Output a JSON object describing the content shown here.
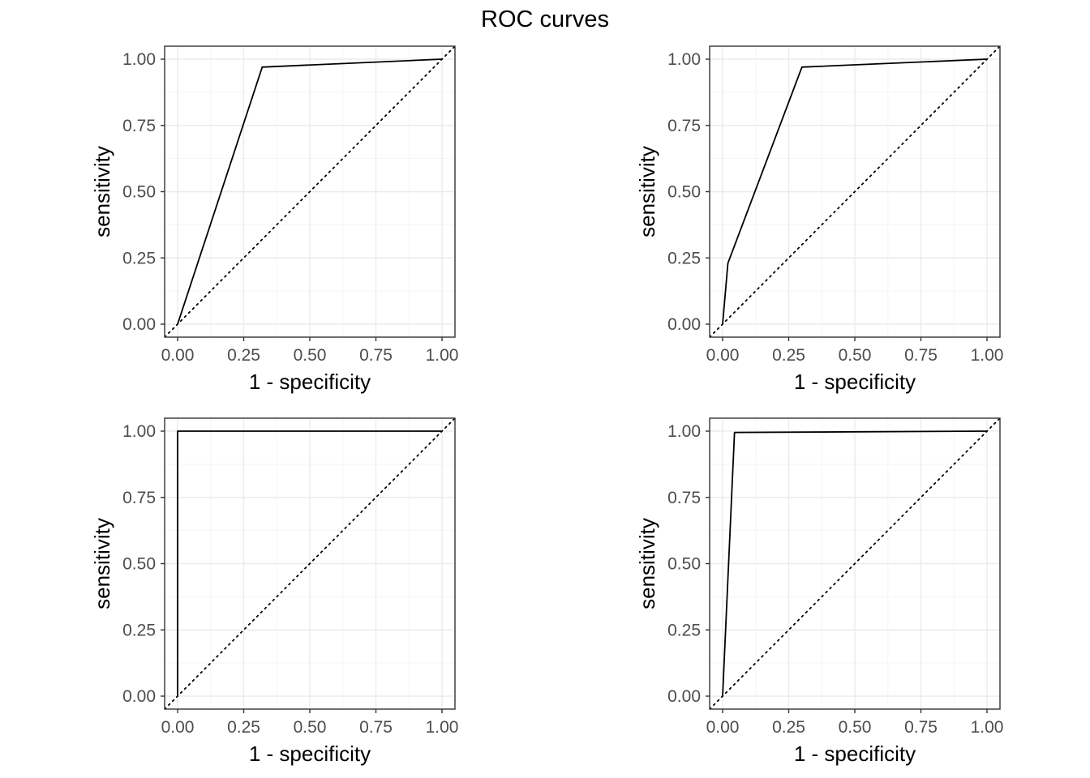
{
  "title": "ROC curves",
  "colors": {
    "grid_major": "#ebebeb",
    "grid_minor": "#f5f5f5",
    "panel_border": "#333333",
    "curve": "#000000",
    "diagonal": "#000000",
    "tick_text": "#4d4d4d"
  },
  "chart_data": [
    {
      "type": "line",
      "xlabel": "1 - specificity",
      "ylabel": "sensitivity",
      "xlim": [
        0,
        1
      ],
      "ylim": [
        0,
        1
      ],
      "xticks": [
        "0.00",
        "0.25",
        "0.50",
        "0.75",
        "1.00"
      ],
      "yticks": [
        "0.00",
        "0.25",
        "0.50",
        "0.75",
        "1.00"
      ],
      "grid": true,
      "reference_line": "diagonal dotted",
      "series": [
        {
          "x": [
            0.0,
            0.32,
            1.0
          ],
          "y": [
            0.0,
            0.97,
            1.0
          ]
        }
      ]
    },
    {
      "type": "line",
      "xlabel": "1 - specificity",
      "ylabel": "sensitivity",
      "xlim": [
        0,
        1
      ],
      "ylim": [
        0,
        1
      ],
      "xticks": [
        "0.00",
        "0.25",
        "0.50",
        "0.75",
        "1.00"
      ],
      "yticks": [
        "0.00",
        "0.25",
        "0.50",
        "0.75",
        "1.00"
      ],
      "grid": true,
      "reference_line": "diagonal dotted",
      "series": [
        {
          "x": [
            0.0,
            0.02,
            0.3,
            1.0
          ],
          "y": [
            0.0,
            0.23,
            0.97,
            1.0
          ]
        }
      ]
    },
    {
      "type": "line",
      "xlabel": "1 - specificity",
      "ylabel": "sensitivity",
      "xlim": [
        0,
        1
      ],
      "ylim": [
        0,
        1
      ],
      "xticks": [
        "0.00",
        "0.25",
        "0.50",
        "0.75",
        "1.00"
      ],
      "yticks": [
        "0.00",
        "0.25",
        "0.50",
        "0.75",
        "1.00"
      ],
      "grid": true,
      "reference_line": "diagonal dotted",
      "series": [
        {
          "x": [
            0.0,
            0.0,
            1.0
          ],
          "y": [
            0.0,
            1.0,
            1.0
          ]
        }
      ]
    },
    {
      "type": "line",
      "xlabel": "1 - specificity",
      "ylabel": "sensitivity",
      "xlim": [
        0,
        1
      ],
      "ylim": [
        0,
        1
      ],
      "xticks": [
        "0.00",
        "0.25",
        "0.50",
        "0.75",
        "1.00"
      ],
      "yticks": [
        "0.00",
        "0.25",
        "0.50",
        "0.75",
        "1.00"
      ],
      "grid": true,
      "reference_line": "diagonal dotted",
      "series": [
        {
          "x": [
            0.0,
            0.045,
            1.0
          ],
          "y": [
            0.0,
            0.995,
            1.0
          ]
        }
      ]
    }
  ]
}
